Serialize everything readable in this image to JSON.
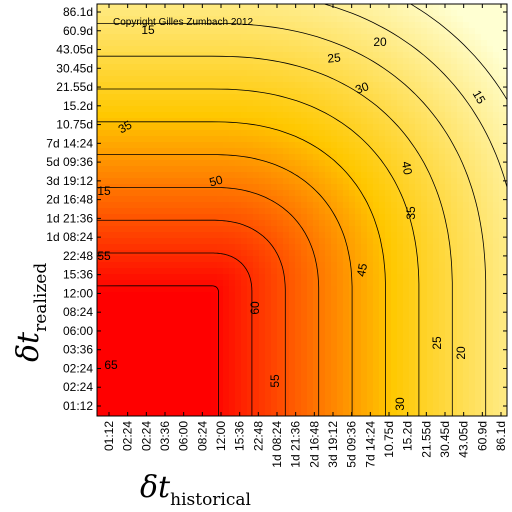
{
  "chart_data": {
    "type": "heatmap",
    "title": "",
    "copyright": "Copyright Gilles Zumbach 2012",
    "xlabel": {
      "symbol": "δt",
      "subscript": "historical"
    },
    "ylabel": {
      "symbol": "δt",
      "subscript": "realized"
    },
    "x_ticks": [
      "01:12",
      "02:24",
      "02:24",
      "03:36",
      "06:00",
      "08:24",
      "12:00",
      "15:36",
      "22:48",
      "1d 08:24",
      "1d 21:36",
      "2d 16:48",
      "3d 19:12",
      "5d 09:36",
      "7d 14:24",
      "10.75d",
      "15.2d",
      "21.55d",
      "30.45d",
      "43.05d",
      "60.9d",
      "86.1d"
    ],
    "y_ticks": [
      "86.1d",
      "60.9d",
      "43.05d",
      "30.45d",
      "21.55d",
      "15.2d",
      "10.75d",
      "7d 14:24",
      "5d 09:36",
      "3d 19:12",
      "2d 16:48",
      "1d 21:36",
      "1d 08:24",
      "22:48",
      "15:36",
      "12:00",
      "08:24",
      "06:00",
      "03:36",
      "02:24",
      "02:24",
      "01:12"
    ],
    "contour_levels": [
      15,
      20,
      25,
      30,
      35,
      40,
      45,
      50,
      55,
      60,
      65
    ],
    "contour_labels": [
      {
        "text": "15"
      },
      {
        "text": "20"
      },
      {
        "text": "25"
      },
      {
        "text": "30"
      },
      {
        "text": "15"
      },
      {
        "text": "35"
      },
      {
        "text": "40"
      },
      {
        "text": "50"
      },
      {
        "text": "15"
      },
      {
        "text": "35"
      },
      {
        "text": "45"
      },
      {
        "text": "55"
      },
      {
        "text": "60"
      },
      {
        "text": "55"
      },
      {
        "text": "25"
      },
      {
        "text": "20"
      },
      {
        "text": "65"
      },
      {
        "text": "30"
      }
    ],
    "color_scale": {
      "high": "#ff0000",
      "mid": "#ffb000",
      "low": "#ffffd0"
    }
  }
}
